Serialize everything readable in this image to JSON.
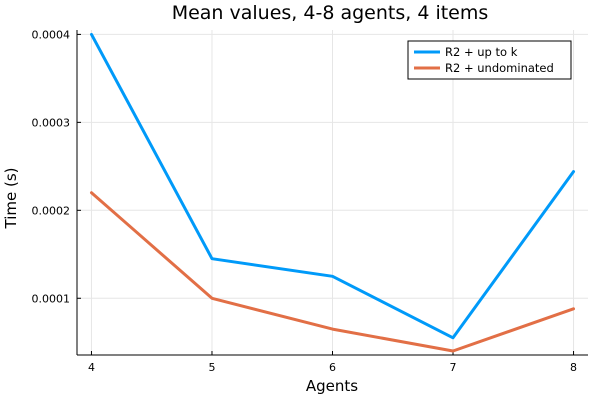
{
  "chart_data": {
    "type": "line",
    "title": "Mean values, 4-8 agents, 4 items",
    "xlabel": "Agents",
    "ylabel": "Time (s)",
    "x": [
      4,
      5,
      6,
      7,
      8
    ],
    "xlim": [
      3.88,
      8.12
    ],
    "ylim": [
      3.55e-05,
      0.000405
    ],
    "x_ticks": [
      4,
      5,
      6,
      7,
      8
    ],
    "y_ticks": [
      0.0001,
      0.0002,
      0.0003,
      0.0004
    ],
    "y_tick_labels": [
      "0.0001",
      "0.0002",
      "0.0003",
      "0.0004"
    ],
    "grid": true,
    "legend_position": "top-right",
    "series": [
      {
        "name": "R2 + up to k",
        "color": "#009af9",
        "values": [
          0.0004,
          0.000145,
          0.000125,
          5.5e-05,
          0.000244
        ]
      },
      {
        "name": "R2 + undominated",
        "color": "#e26f46",
        "values": [
          0.00022,
          0.0001,
          6.5e-05,
          4e-05,
          8.8e-05
        ]
      }
    ]
  }
}
